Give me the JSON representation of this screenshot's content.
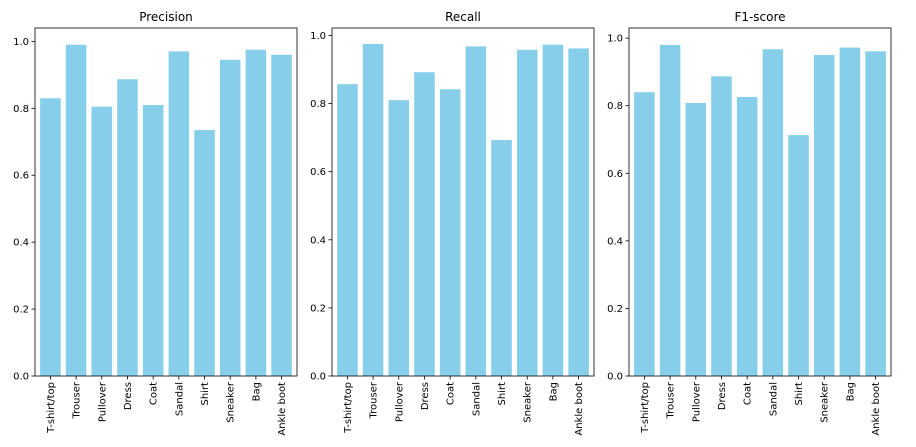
{
  "colors": {
    "bar": "#87ceeb",
    "axis": "#000000",
    "background": "#ffffff"
  },
  "chart_data": [
    {
      "type": "bar",
      "title": "Precision",
      "categories": [
        "T-shirt/top",
        "Trouser",
        "Pullover",
        "Dress",
        "Coat",
        "Sandal",
        "Shirt",
        "Sneaker",
        "Bag",
        "Ankle boot"
      ],
      "values": [
        0.83,
        0.99,
        0.805,
        0.887,
        0.81,
        0.97,
        0.735,
        0.945,
        0.975,
        0.96
      ],
      "xlabel": "",
      "ylabel": "",
      "ylim": [
        0,
        1.04
      ],
      "yticks": [
        "0.0",
        "0.2",
        "0.4",
        "0.6",
        "0.8",
        "1.0"
      ],
      "grid": false
    },
    {
      "type": "bar",
      "title": "Recall",
      "categories": [
        "T-shirt/top",
        "Trouser",
        "Pullover",
        "Dress",
        "Coat",
        "Sandal",
        "Shirt",
        "Sneaker",
        "Bag",
        "Ankle boot"
      ],
      "values": [
        0.857,
        0.975,
        0.81,
        0.892,
        0.842,
        0.968,
        0.693,
        0.958,
        0.973,
        0.962
      ],
      "xlabel": "",
      "ylabel": "",
      "ylim": [
        0,
        1.022
      ],
      "yticks": [
        "0.0",
        "0.2",
        "0.4",
        "0.6",
        "0.8",
        "1.0"
      ],
      "grid": false
    },
    {
      "type": "bar",
      "title": "F1-score",
      "categories": [
        "T-shirt/top",
        "Trouser",
        "Pullover",
        "Dress",
        "Coat",
        "Sandal",
        "Shirt",
        "Sneaker",
        "Bag",
        "Ankle boot"
      ],
      "values": [
        0.84,
        0.98,
        0.808,
        0.887,
        0.826,
        0.967,
        0.713,
        0.95,
        0.972,
        0.961
      ],
      "xlabel": "",
      "ylabel": "",
      "ylim": [
        0,
        1.03
      ],
      "yticks": [
        "0.0",
        "0.2",
        "0.4",
        "0.6",
        "0.8",
        "1.0"
      ],
      "grid": false
    }
  ]
}
